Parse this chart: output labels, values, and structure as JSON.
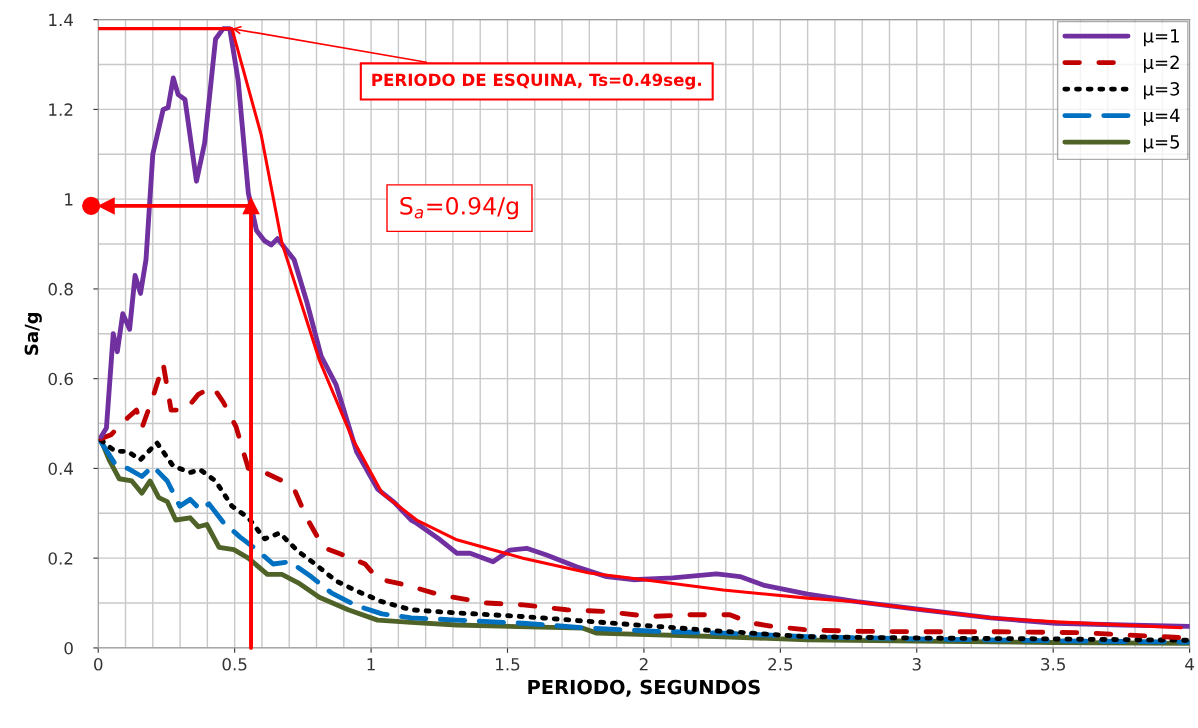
{
  "chart_data": {
    "type": "line",
    "xlabel": "PERIODO, SEGUNDOS",
    "ylabel": "Sa/g",
    "xlim": [
      0,
      4
    ],
    "xticks": [
      0,
      0.5,
      1,
      1.5,
      2,
      2.5,
      3,
      3.5,
      4
    ],
    "ylim": [
      0,
      1.4
    ],
    "yticks": [
      0,
      0.2,
      0.4,
      0.6,
      0.8,
      1,
      1.2,
      1.4
    ],
    "grid": true,
    "legend": "top right",
    "series": [
      {
        "name": "μ=1",
        "color": "#7030a0",
        "line_style": "solid",
        "x": [
          0.01,
          0.03,
          0.055,
          0.07,
          0.09,
          0.115,
          0.135,
          0.155,
          0.175,
          0.2,
          0.238,
          0.256,
          0.275,
          0.293,
          0.318,
          0.36,
          0.39,
          0.43,
          0.458,
          0.482,
          0.513,
          0.55,
          0.58,
          0.61,
          0.634,
          0.657,
          0.718,
          0.764,
          0.817,
          0.872,
          0.947,
          1.024,
          1.084,
          1.147,
          1.167,
          1.253,
          1.314,
          1.363,
          1.447,
          1.509,
          1.57,
          1.643,
          1.753,
          1.863,
          1.96,
          2.106,
          2.266,
          2.352,
          2.437,
          2.6,
          2.78,
          3.02,
          3.27,
          3.51,
          3.755,
          4.0
        ],
        "values": [
          0.47,
          0.49,
          0.7,
          0.66,
          0.745,
          0.71,
          0.83,
          0.79,
          0.865,
          1.1,
          1.2,
          1.204,
          1.27,
          1.233,
          1.222,
          1.04,
          1.125,
          1.357,
          1.38,
          1.38,
          1.264,
          1.014,
          0.93,
          0.907,
          0.898,
          0.912,
          0.865,
          0.772,
          0.65,
          0.586,
          0.437,
          0.354,
          0.325,
          0.285,
          0.278,
          0.241,
          0.211,
          0.211,
          0.192,
          0.218,
          0.222,
          0.207,
          0.181,
          0.159,
          0.152,
          0.156,
          0.165,
          0.159,
          0.14,
          0.12,
          0.103,
          0.085,
          0.067,
          0.055,
          0.051,
          0.048
        ]
      },
      {
        "name": "μ=2",
        "color": "#c00000",
        "line_style": "dashed",
        "x": [
          0.01,
          0.047,
          0.108,
          0.14,
          0.16,
          0.2,
          0.238,
          0.267,
          0.32,
          0.367,
          0.42,
          0.458,
          0.505,
          0.55,
          0.61,
          0.689,
          0.718,
          0.764,
          0.825,
          0.886,
          0.978,
          1.024,
          1.13,
          1.253,
          1.424,
          1.557,
          1.717,
          1.863,
          2.02,
          2.17,
          2.315,
          2.39,
          2.47,
          2.6,
          2.8,
          3.0,
          3.3,
          3.6,
          3.8,
          4.0
        ],
        "values": [
          0.466,
          0.475,
          0.513,
          0.53,
          0.49,
          0.558,
          0.633,
          0.53,
          0.53,
          0.565,
          0.582,
          0.548,
          0.493,
          0.4,
          0.391,
          0.368,
          0.354,
          0.29,
          0.224,
          0.21,
          0.187,
          0.154,
          0.14,
          0.118,
          0.1,
          0.096,
          0.085,
          0.081,
          0.07,
          0.074,
          0.074,
          0.056,
          0.048,
          0.04,
          0.037,
          0.036,
          0.036,
          0.034,
          0.028,
          0.022
        ]
      },
      {
        "name": "μ=3",
        "color": "#000000",
        "line_style": "dotted",
        "x": [
          0.01,
          0.062,
          0.108,
          0.154,
          0.215,
          0.275,
          0.337,
          0.374,
          0.43,
          0.49,
          0.55,
          0.61,
          0.665,
          0.733,
          0.795,
          0.872,
          0.947,
          1.04,
          1.147,
          1.314,
          1.557,
          1.8,
          2.046,
          2.29,
          2.6,
          3.0,
          3.5,
          4.0
        ],
        "values": [
          0.463,
          0.438,
          0.438,
          0.419,
          0.457,
          0.405,
          0.391,
          0.397,
          0.372,
          0.316,
          0.29,
          0.243,
          0.256,
          0.215,
          0.187,
          0.149,
          0.127,
          0.103,
          0.085,
          0.078,
          0.07,
          0.059,
          0.048,
          0.037,
          0.025,
          0.022,
          0.02,
          0.017
        ]
      },
      {
        "name": "μ=4",
        "color": "#0070c0",
        "line_style": "dashed",
        "x": [
          0.01,
          0.062,
          0.108,
          0.16,
          0.2,
          0.253,
          0.299,
          0.337,
          0.374,
          0.406,
          0.458,
          0.52,
          0.58,
          0.641,
          0.703,
          0.78,
          0.856,
          0.947,
          1.04,
          1.147,
          1.314,
          1.557,
          1.8,
          2.046,
          2.29,
          2.6,
          3.0,
          3.5,
          4.0
        ],
        "values": [
          0.459,
          0.41,
          0.4,
          0.382,
          0.405,
          0.372,
          0.316,
          0.331,
          0.308,
          0.321,
          0.28,
          0.247,
          0.219,
          0.187,
          0.192,
          0.159,
          0.122,
          0.094,
          0.076,
          0.067,
          0.062,
          0.055,
          0.044,
          0.037,
          0.033,
          0.025,
          0.02,
          0.016,
          0.013
        ]
      },
      {
        "name": "μ=5",
        "color": "#4f6228",
        "line_style": "solid",
        "x": [
          0.01,
          0.04,
          0.077,
          0.123,
          0.16,
          0.19,
          0.222,
          0.253,
          0.284,
          0.337,
          0.367,
          0.398,
          0.443,
          0.497,
          0.55,
          0.62,
          0.673,
          0.733,
          0.81,
          0.916,
          1.024,
          1.147,
          1.314,
          1.777,
          1.827,
          2.29,
          2.6,
          3.0,
          3.5,
          4.0
        ],
        "values": [
          0.463,
          0.419,
          0.377,
          0.372,
          0.345,
          0.372,
          0.335,
          0.326,
          0.285,
          0.29,
          0.27,
          0.275,
          0.224,
          0.219,
          0.2,
          0.164,
          0.164,
          0.145,
          0.113,
          0.085,
          0.062,
          0.057,
          0.051,
          0.044,
          0.033,
          0.025,
          0.018,
          0.015,
          0.012,
          0.01
        ]
      },
      {
        "color": "#ff0000",
        "line_style": "solid",
        "x": [
          0,
          0.49,
          0.597,
          0.673,
          0.81,
          0.932,
          1.04,
          1.167,
          1.314,
          1.557,
          1.8,
          2.0,
          2.29,
          2.6,
          2.78,
          3.02,
          3.27,
          3.51,
          3.97
        ],
        "values": [
          1.38,
          1.38,
          1.144,
          0.903,
          0.642,
          0.466,
          0.345,
          0.285,
          0.241,
          0.2,
          0.167,
          0.152,
          0.129,
          0.111,
          0.103,
          0.085,
          0.067,
          0.058,
          0.045
        ]
      },
      {
        "color": "#ff0000",
        "line_style": "solid",
        "marker": "triangle",
        "x": [
          0.56,
          0.56,
          0.03
        ],
        "values": [
          0,
          0.985,
          0.985
        ]
      }
    ],
    "annotations": [
      {
        "text": "PERIODO DE ESQUINA, Ts=0.49seg.",
        "x": 0.49,
        "y": 1.38
      },
      "S$_{a}$=0.94/g"
    ]
  }
}
